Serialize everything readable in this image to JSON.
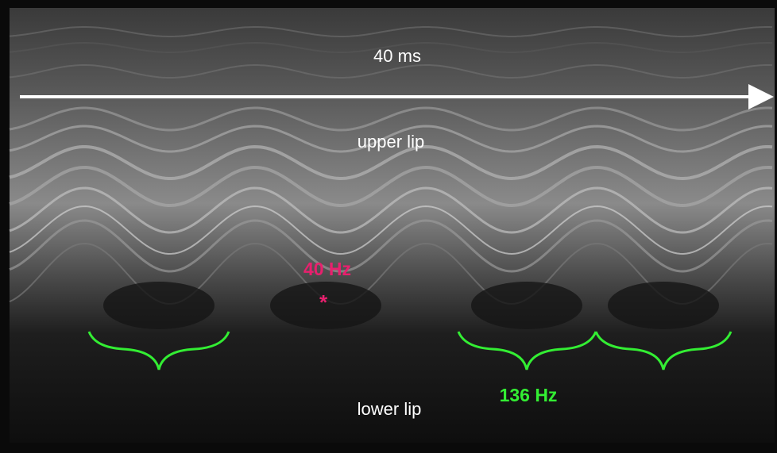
{
  "annotations": {
    "time_scale": "40 ms",
    "upper_lip": "upper lip",
    "low_frequency": "40 Hz",
    "marker": "*",
    "lower_lip": "lower lip",
    "high_frequency": "136 Hz"
  }
}
